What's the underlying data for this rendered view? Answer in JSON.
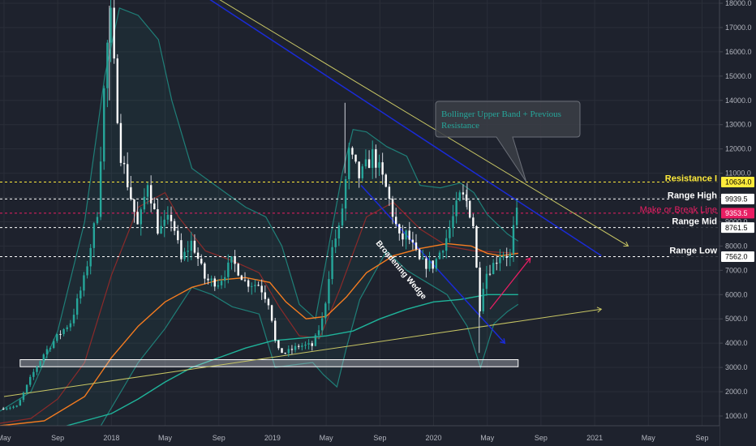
{
  "chart_data": {
    "type": "candlestick",
    "y_axis": {
      "ticks": [
        "1000.0",
        "2000.0",
        "3000.0",
        "4000.0",
        "5000.0",
        "6000.0",
        "7000.0",
        "8000.0",
        "9000.0",
        "10000.0",
        "11000.0",
        "12000.0",
        "13000.0",
        "14000.0",
        "15000.0",
        "16000.0",
        "17000.0",
        "18000.0"
      ],
      "range": [
        550,
        18000
      ]
    },
    "x_axis": {
      "labels": [
        {
          "text": "May",
          "t": 0
        },
        {
          "text": "Sep",
          "t": 4
        },
        {
          "text": "2018",
          "t": 8
        },
        {
          "text": "May",
          "t": 12
        },
        {
          "text": "Sep",
          "t": 16
        },
        {
          "text": "2019",
          "t": 20
        },
        {
          "text": "May",
          "t": 24
        },
        {
          "text": "Sep",
          "t": 28
        },
        {
          "text": "2020",
          "t": 32
        },
        {
          "text": "May",
          "t": 36
        },
        {
          "text": "Sep",
          "t": 40
        },
        {
          "text": "2021",
          "t": 44
        },
        {
          "text": "May",
          "t": 48
        },
        {
          "text": "Sep",
          "t": 52
        }
      ],
      "range": [
        -0.3,
        53.3
      ]
    },
    "levels": [
      {
        "label": "Resistance I",
        "price": 10634,
        "badge": "10634.0",
        "color": "#ffeb3b",
        "badge_text_color": "#000000"
      },
      {
        "label": "Range High",
        "price": 9939.5,
        "badge": "9939.5",
        "color": "#ffffff",
        "badge_text_color": "#000000"
      },
      {
        "label": "Make or Break Line",
        "price": 9353.5,
        "badge": "9353.5",
        "color": "#e91e63",
        "badge_text_color": "#ffffff"
      },
      {
        "label": "Range Mid",
        "price": 8761.5,
        "badge": "8761.5",
        "color": "#ffffff",
        "badge_text_color": "#000000"
      },
      {
        "label": "Range Low",
        "price": 7562,
        "badge": "7562.0",
        "color": "#ffffff",
        "badge_text_color": "#000000"
      }
    ],
    "annotations": {
      "callout": "Bollinger Upper Band + Previous Resistance",
      "wedge": "Broadening Wedge"
    },
    "support_box": {
      "t0": 1.2,
      "t1": 38.3,
      "p0": 3030,
      "p1": 3320
    },
    "price_path": [
      [
        -0.3,
        1300
      ],
      [
        1.0,
        1400
      ],
      [
        2.0,
        2600
      ],
      [
        3.0,
        3600
      ],
      [
        4.0,
        4300
      ],
      [
        5.0,
        4900
      ],
      [
        6.0,
        6700
      ],
      [
        7.0,
        9600
      ],
      [
        7.4,
        14000
      ],
      [
        7.9,
        17800
      ],
      [
        8.3,
        14500
      ],
      [
        8.7,
        11800
      ],
      [
        9.2,
        10600
      ],
      [
        10.0,
        8700
      ],
      [
        10.7,
        10700
      ],
      [
        11.5,
        8600
      ],
      [
        12.5,
        9200
      ],
      [
        13.2,
        7400
      ],
      [
        14.0,
        8200
      ],
      [
        15.0,
        6600
      ],
      [
        16.0,
        6500
      ],
      [
        17.0,
        7400
      ],
      [
        18.0,
        6500
      ],
      [
        19.0,
        6400
      ],
      [
        19.8,
        5600
      ],
      [
        20.3,
        3700
      ],
      [
        21.0,
        3600
      ],
      [
        22.0,
        3900
      ],
      [
        23.0,
        3900
      ],
      [
        23.8,
        5100
      ],
      [
        24.5,
        8100
      ],
      [
        25.0,
        8700
      ],
      [
        25.7,
        11800
      ],
      [
        26.5,
        10800
      ],
      [
        27.5,
        11800
      ],
      [
        28.5,
        10300
      ],
      [
        29.5,
        8200
      ],
      [
        30.0,
        8500
      ],
      [
        31.0,
        7300
      ],
      [
        32.0,
        7200
      ],
      [
        33.0,
        8400
      ],
      [
        34.0,
        10100
      ],
      [
        34.5,
        9800
      ],
      [
        35.0,
        8800
      ],
      [
        35.4,
        5300
      ],
      [
        35.8,
        6800
      ],
      [
        36.4,
        7200
      ],
      [
        37.0,
        7700
      ],
      [
        37.7,
        7600
      ],
      [
        38.0,
        8900
      ],
      [
        38.3,
        9500
      ]
    ],
    "bollinger_basis": [
      [
        -0.3,
        700
      ],
      [
        2,
        900
      ],
      [
        4,
        1700
      ],
      [
        6,
        3200
      ],
      [
        8,
        6800
      ],
      [
        10,
        9600
      ],
      [
        12,
        10200
      ],
      [
        13,
        9200
      ],
      [
        15,
        7800
      ],
      [
        17,
        7400
      ],
      [
        19,
        6900
      ],
      [
        20.5,
        5500
      ],
      [
        22,
        4300
      ],
      [
        23.5,
        4200
      ],
      [
        25,
        6200
      ],
      [
        27,
        9200
      ],
      [
        29,
        9800
      ],
      [
        31,
        8700
      ],
      [
        33,
        8000
      ],
      [
        35,
        7800
      ],
      [
        38.3,
        7700
      ]
    ],
    "bollinger_upper": [
      [
        -0.3,
        1200
      ],
      [
        2,
        2000
      ],
      [
        4,
        4500
      ],
      [
        6,
        9000
      ],
      [
        7.5,
        15000
      ],
      [
        8.6,
        17800
      ],
      [
        10,
        17500
      ],
      [
        11.5,
        16500
      ],
      [
        12.5,
        14000
      ],
      [
        14,
        11200
      ],
      [
        16,
        10400
      ],
      [
        18,
        9600
      ],
      [
        19.5,
        9200
      ],
      [
        20.7,
        8000
      ],
      [
        22,
        5600
      ],
      [
        23.2,
        5000
      ],
      [
        24.2,
        8000
      ],
      [
        25.2,
        11000
      ],
      [
        26,
        12800
      ],
      [
        27,
        12700
      ],
      [
        28.5,
        12100
      ],
      [
        30,
        11700
      ],
      [
        31,
        10500
      ],
      [
        32.5,
        10400
      ],
      [
        34,
        10600
      ],
      [
        35,
        10200
      ],
      [
        36,
        9300
      ],
      [
        37.5,
        8500
      ],
      [
        38.3,
        8200
      ]
    ],
    "bollinger_lower": [
      [
        -0.3,
        500
      ],
      [
        2,
        500
      ],
      [
        4,
        600
      ],
      [
        5.5,
        200
      ],
      [
        7,
        400
      ],
      [
        8.5,
        1800
      ],
      [
        10,
        3200
      ],
      [
        12,
        4600
      ],
      [
        14,
        6300
      ],
      [
        15.5,
        6000
      ],
      [
        17,
        5500
      ],
      [
        19,
        5200
      ],
      [
        20.2,
        3000
      ],
      [
        21.5,
        3100
      ],
      [
        23,
        3200
      ],
      [
        23.8,
        2700
      ],
      [
        24.8,
        2200
      ],
      [
        25.5,
        3800
      ],
      [
        26.5,
        5800
      ],
      [
        28.5,
        7800
      ],
      [
        30,
        7000
      ],
      [
        31.5,
        6500
      ],
      [
        33,
        6000
      ],
      [
        34.5,
        4700
      ],
      [
        35.5,
        3000
      ],
      [
        36.5,
        4800
      ],
      [
        37.5,
        5300
      ],
      [
        38.3,
        5600
      ]
    ],
    "ma_orange": [
      [
        -0.3,
        600
      ],
      [
        3,
        800
      ],
      [
        6,
        1800
      ],
      [
        8,
        3400
      ],
      [
        10,
        4700
      ],
      [
        12,
        5700
      ],
      [
        14,
        6300
      ],
      [
        16,
        6600
      ],
      [
        18,
        6700
      ],
      [
        19.8,
        6500
      ],
      [
        21,
        5700
      ],
      [
        22.5,
        5000
      ],
      [
        24,
        5100
      ],
      [
        25.5,
        5900
      ],
      [
        27,
        6900
      ],
      [
        29,
        7600
      ],
      [
        31,
        7900
      ],
      [
        33,
        8100
      ],
      [
        34.8,
        8000
      ],
      [
        36,
        7700
      ],
      [
        37,
        7600
      ],
      [
        38.3,
        7700
      ]
    ],
    "ma_teal": [
      [
        -0.3,
        500
      ],
      [
        4,
        500
      ],
      [
        8,
        1100
      ],
      [
        10,
        1700
      ],
      [
        12,
        2400
      ],
      [
        14,
        3000
      ],
      [
        16,
        3400
      ],
      [
        18,
        3800
      ],
      [
        20,
        4100
      ],
      [
        22,
        4200
      ],
      [
        24,
        4300
      ],
      [
        26,
        4500
      ],
      [
        28,
        5000
      ],
      [
        30,
        5400
      ],
      [
        32,
        5700
      ],
      [
        34,
        5800
      ],
      [
        36,
        6000
      ],
      [
        38.3,
        6000
      ]
    ],
    "trendline_yellow_down": {
      "p1": [
        13.5,
        19000
      ],
      "p2": [
        46.5,
        8000
      ],
      "color": "#c8c664"
    },
    "trendline_yellow_up": {
      "p1": [
        0.0,
        1800
      ],
      "p2": [
        44.5,
        5400
      ],
      "color": "#c8c664"
    },
    "trendline_blue_down": {
      "p1": [
        13.0,
        19000
      ],
      "p2": [
        44.5,
        7600
      ],
      "color": "#1a2bd6"
    },
    "trendline_blue_lower": {
      "p1": [
        26.6,
        10500
      ],
      "p2": [
        37.3,
        4000
      ],
      "color": "#1a2bd6"
    },
    "projection_arrow": {
      "p1": [
        36.2,
        5400
      ],
      "p2": [
        39.2,
        7500
      ],
      "color": "#e91e63"
    }
  }
}
